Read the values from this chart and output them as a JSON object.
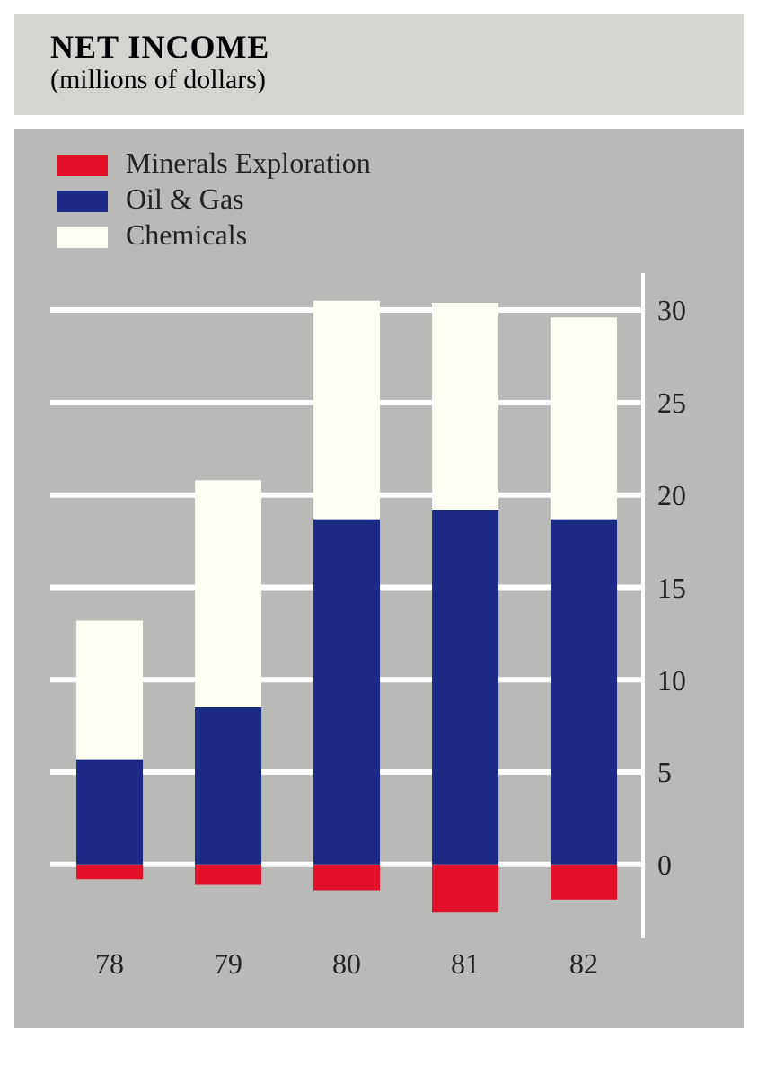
{
  "chart_data": {
    "type": "bar",
    "title": "NET INCOME",
    "subtitle": "(millions of dollars)",
    "categories": [
      "78",
      "79",
      "80",
      "81",
      "82"
    ],
    "stacked": true,
    "series": [
      {
        "name": "Minerals Exploration",
        "color": "#e3102a",
        "values": [
          -0.8,
          -1.1,
          -1.4,
          -2.6,
          -1.9
        ]
      },
      {
        "name": "Oil & Gas",
        "color": "#1c2a86",
        "values": [
          5.7,
          8.5,
          18.7,
          19.2,
          18.7
        ]
      },
      {
        "name": "Chemicals",
        "color": "#fffef4",
        "values": [
          7.5,
          12.3,
          11.8,
          11.2,
          10.9
        ]
      }
    ],
    "ylim": [
      -4,
      32
    ],
    "yticks": [
      0,
      5,
      10,
      15,
      20,
      25,
      30
    ],
    "grid": "y",
    "legend": "top left"
  }
}
